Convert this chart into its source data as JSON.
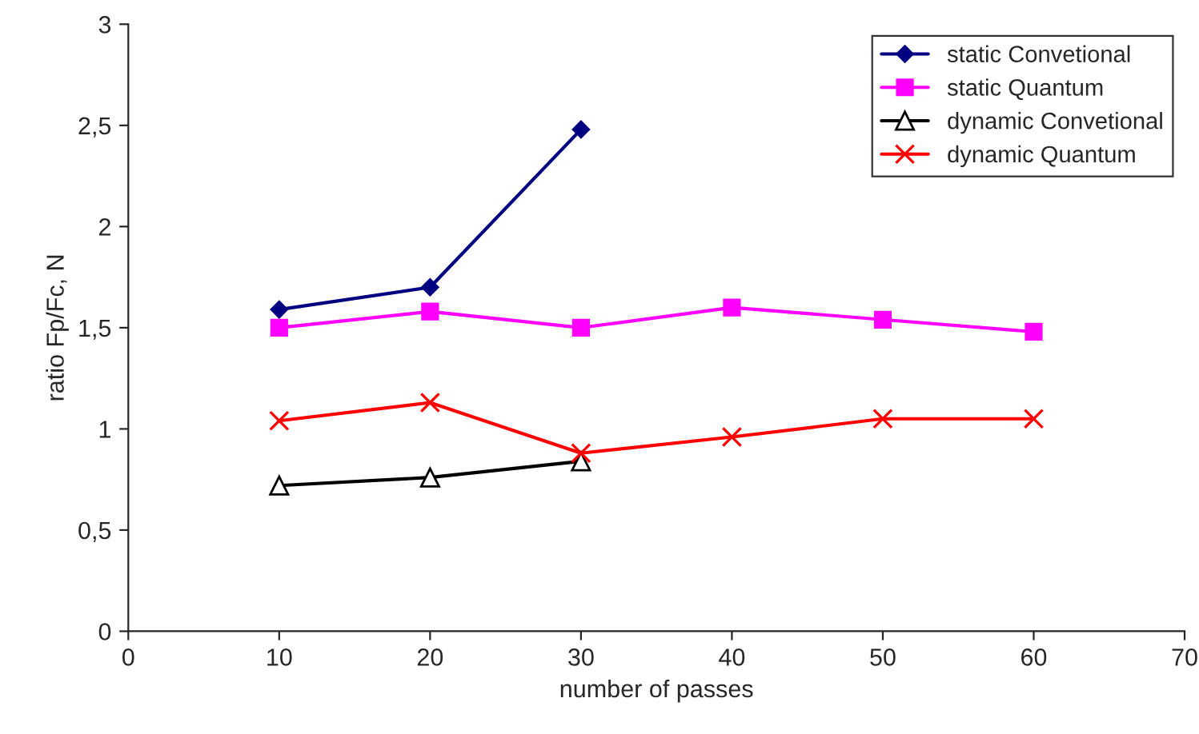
{
  "chart_data": {
    "type": "line",
    "xlabel": "number of passes",
    "ylabel": "ratio Fp/Fc, N",
    "xlim": [
      0,
      70
    ],
    "xticks": [
      0,
      10,
      20,
      30,
      40,
      50,
      60,
      70
    ],
    "ylim": [
      0,
      3
    ],
    "yticks": [
      0,
      {
        "value": 0.5,
        "label": "0,5"
      },
      1,
      {
        "value": 1.5,
        "label": "1,5"
      },
      2,
      {
        "value": 2.5,
        "label": "2,5"
      },
      3
    ],
    "grid": false,
    "legend": "top right",
    "series": [
      {
        "name": "static Convetional",
        "color": "#000080",
        "marker": "diamond",
        "x": [
          10,
          20,
          30
        ],
        "values": [
          1.59,
          1.7,
          2.48
        ]
      },
      {
        "name": "static Quantum",
        "color": "#ff00ff",
        "marker": "square",
        "x": [
          10,
          20,
          30,
          40,
          50,
          60
        ],
        "values": [
          1.5,
          1.58,
          1.5,
          1.6,
          1.54,
          1.48
        ]
      },
      {
        "name": "dynamic Convetional",
        "color": "#000000",
        "marker": "triangle",
        "x": [
          10,
          20,
          30
        ],
        "values": [
          0.72,
          0.76,
          0.84
        ]
      },
      {
        "name": "dynamic Quantum",
        "color": "#ff0000",
        "marker": "cross",
        "x": [
          10,
          20,
          30,
          40,
          50,
          60
        ],
        "values": [
          1.04,
          1.13,
          0.88,
          0.96,
          1.05,
          1.05
        ]
      }
    ]
  }
}
